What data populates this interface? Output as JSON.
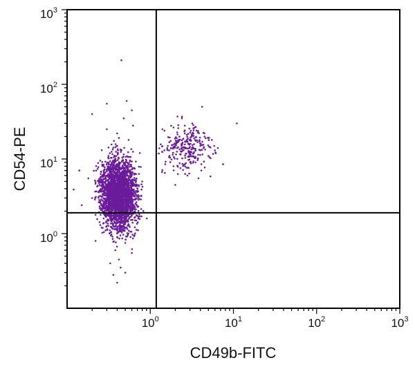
{
  "chart_data": {
    "type": "scatter",
    "title": "",
    "xlabel": "CD49b-FITC",
    "ylabel": "CD54-PE",
    "xscale": "log",
    "yscale": "log",
    "xlim": [
      0.1,
      1000
    ],
    "ylim": [
      0.1,
      1000
    ],
    "x_ticks": [
      {
        "value": 1,
        "base": "10",
        "exp": "0"
      },
      {
        "value": 10,
        "base": "10",
        "exp": "1"
      },
      {
        "value": 100,
        "base": "10",
        "exp": "2"
      },
      {
        "value": 1000,
        "base": "10",
        "exp": "3"
      }
    ],
    "y_ticks": [
      {
        "value": 1,
        "base": "10",
        "exp": "0"
      },
      {
        "value": 10,
        "base": "10",
        "exp": "1"
      },
      {
        "value": 100,
        "base": "10",
        "exp": "2"
      },
      {
        "value": 1000,
        "base": "10",
        "exp": "3"
      }
    ],
    "grid": false,
    "legend": "none",
    "quadrant_gates": {
      "x": 1.18,
      "y": 1.9
    },
    "point_color": "#6a1b9a",
    "points": [
      [
        0.42,
        3.8
      ],
      [
        0.35,
        5.1
      ],
      [
        0.5,
        2.7
      ],
      [
        0.3,
        4.2
      ],
      [
        0.46,
        6.3
      ],
      [
        0.55,
        3.1
      ],
      [
        0.38,
        2.2
      ],
      [
        0.28,
        3.4
      ],
      [
        0.62,
        4.6
      ],
      [
        0.44,
        8.9
      ],
      [
        0.33,
        1.6
      ],
      [
        0.52,
        1.2
      ],
      [
        0.4,
        0.9
      ],
      [
        0.58,
        2.0
      ],
      [
        0.25,
        2.6
      ],
      [
        0.48,
        11.5
      ],
      [
        0.36,
        14.2
      ],
      [
        0.65,
        7.4
      ],
      [
        0.3,
        6.8
      ],
      [
        0.7,
        3.6
      ],
      [
        0.22,
        4.9
      ],
      [
        0.45,
        1.4
      ],
      [
        0.5,
        0.75
      ],
      [
        0.38,
        0.6
      ],
      [
        0.6,
        0.55
      ],
      [
        0.42,
        0.45
      ],
      [
        0.34,
        1.05
      ],
      [
        0.28,
        1.8
      ],
      [
        0.2,
        3.0
      ],
      [
        0.18,
        5.5
      ],
      [
        0.55,
        18.0
      ],
      [
        0.4,
        22.0
      ],
      [
        0.3,
        25.0
      ],
      [
        0.48,
        35.0
      ],
      [
        0.62,
        28.0
      ],
      [
        0.75,
        12.0
      ],
      [
        0.8,
        5.0
      ],
      [
        0.72,
        2.3
      ],
      [
        0.68,
        1.5
      ],
      [
        0.15,
        2.4
      ],
      [
        0.14,
        7.0
      ],
      [
        0.25,
        9.5
      ],
      [
        0.12,
        3.9
      ],
      [
        0.44,
        0.35
      ],
      [
        0.5,
        0.3
      ],
      [
        0.36,
        0.28
      ],
      [
        0.4,
        0.22
      ],
      [
        0.33,
        0.4
      ],
      [
        0.58,
        0.9
      ],
      [
        0.26,
        1.2
      ],
      [
        0.22,
        0.8
      ],
      [
        0.6,
        45.0
      ],
      [
        0.45,
        210.0
      ],
      [
        0.3,
        55.0
      ],
      [
        0.2,
        40.0
      ],
      [
        0.52,
        60.0
      ],
      [
        0.37,
        3.3
      ],
      [
        0.41,
        4.4
      ],
      [
        0.47,
        2.9
      ],
      [
        0.39,
        5.8
      ],
      [
        0.43,
        3.0
      ],
      [
        0.49,
        4.1
      ],
      [
        0.34,
        3.7
      ],
      [
        0.46,
        2.5
      ],
      [
        1.6,
        14.0
      ],
      [
        2.2,
        18.0
      ],
      [
        3.0,
        12.0
      ],
      [
        2.6,
        22.0
      ],
      [
        4.0,
        15.0
      ],
      [
        3.5,
        9.0
      ],
      [
        1.9,
        8.0
      ],
      [
        2.8,
        6.0
      ],
      [
        5.0,
        11.0
      ],
      [
        4.5,
        20.0
      ],
      [
        1.4,
        25.0
      ],
      [
        3.2,
        30.0
      ],
      [
        6.5,
        14.0
      ],
      [
        2.0,
        4.5
      ],
      [
        3.8,
        5.5
      ],
      [
        1.7,
        11.0
      ],
      [
        7.5,
        8.5
      ],
      [
        2.4,
        35.0
      ],
      [
        4.2,
        50.0
      ],
      [
        11.0,
        30.0
      ],
      [
        1.5,
        6.5
      ],
      [
        5.5,
        18.0
      ],
      [
        2.9,
        16.0
      ],
      [
        3.6,
        24.0
      ]
    ]
  }
}
